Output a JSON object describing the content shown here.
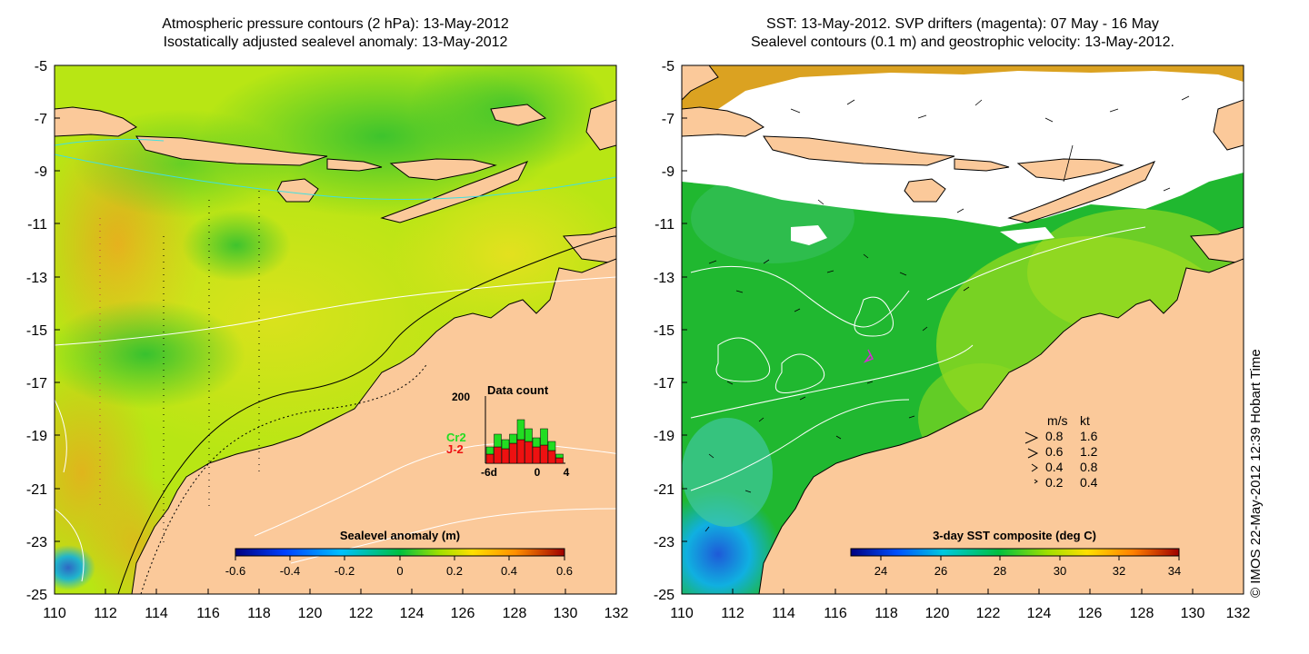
{
  "left_panel": {
    "title_line1": "Atmospheric pressure contours (2 hPa): 13-May-2012",
    "title_line2": "Isostatically adjusted sealevel anomaly: 13-May-2012",
    "lat_ticks": [
      "-5",
      "-7",
      "-9",
      "-11",
      "-13",
      "-15",
      "-17",
      "-19",
      "-21",
      "-23",
      "-25"
    ],
    "lon_ticks": [
      "110",
      "112",
      "114",
      "116",
      "118",
      "120",
      "122",
      "124",
      "126",
      "128",
      "130",
      "132"
    ],
    "colorbar": {
      "title": "Sealevel anomaly (m)",
      "ticks": [
        "-0.6",
        "-0.4",
        "-0.2",
        "0",
        "0.2",
        "0.4",
        "0.6"
      ]
    },
    "data_count": {
      "title": "Data count",
      "ymax_label": "200",
      "x_labels": [
        "-6d",
        "0",
        "4"
      ],
      "legend_cr2": "Cr2",
      "legend_j2": "J-2",
      "cr2_color": "#22dd22",
      "j2_color": "#ee1111"
    }
  },
  "right_panel": {
    "title_line1": "SST: 13-May-2012. SVP drifters (magenta): 07 May - 16 May",
    "title_line2": "Sealevel contours (0.1 m) and geostrophic velocity: 13-May-2012.",
    "lat_ticks": [
      "-5",
      "-7",
      "-9",
      "-11",
      "-13",
      "-15",
      "-17",
      "-19",
      "-21",
      "-23",
      "-25"
    ],
    "lon_ticks": [
      "110",
      "112",
      "114",
      "116",
      "118",
      "120",
      "122",
      "124",
      "126",
      "128",
      "130",
      "132"
    ],
    "colorbar": {
      "title": "3-day SST composite (deg C)",
      "ticks": [
        "24",
        "26",
        "28",
        "30",
        "32",
        "34"
      ]
    },
    "velocity_legend": {
      "header_ms": "m/s",
      "header_kt": "kt",
      "rows": [
        {
          "ms": "0.8",
          "kt": "1.6"
        },
        {
          "ms": "0.6",
          "kt": "1.2"
        },
        {
          "ms": "0.4",
          "kt": "0.8"
        },
        {
          "ms": "0.2",
          "kt": "0.4"
        }
      ]
    }
  },
  "credit": "© IMOS 22-May-2012 12:39 Hobart Time",
  "colors": {
    "land": "#fbc99a",
    "cloud": "#ffffff",
    "contour_cyan": "#40e0e0"
  }
}
